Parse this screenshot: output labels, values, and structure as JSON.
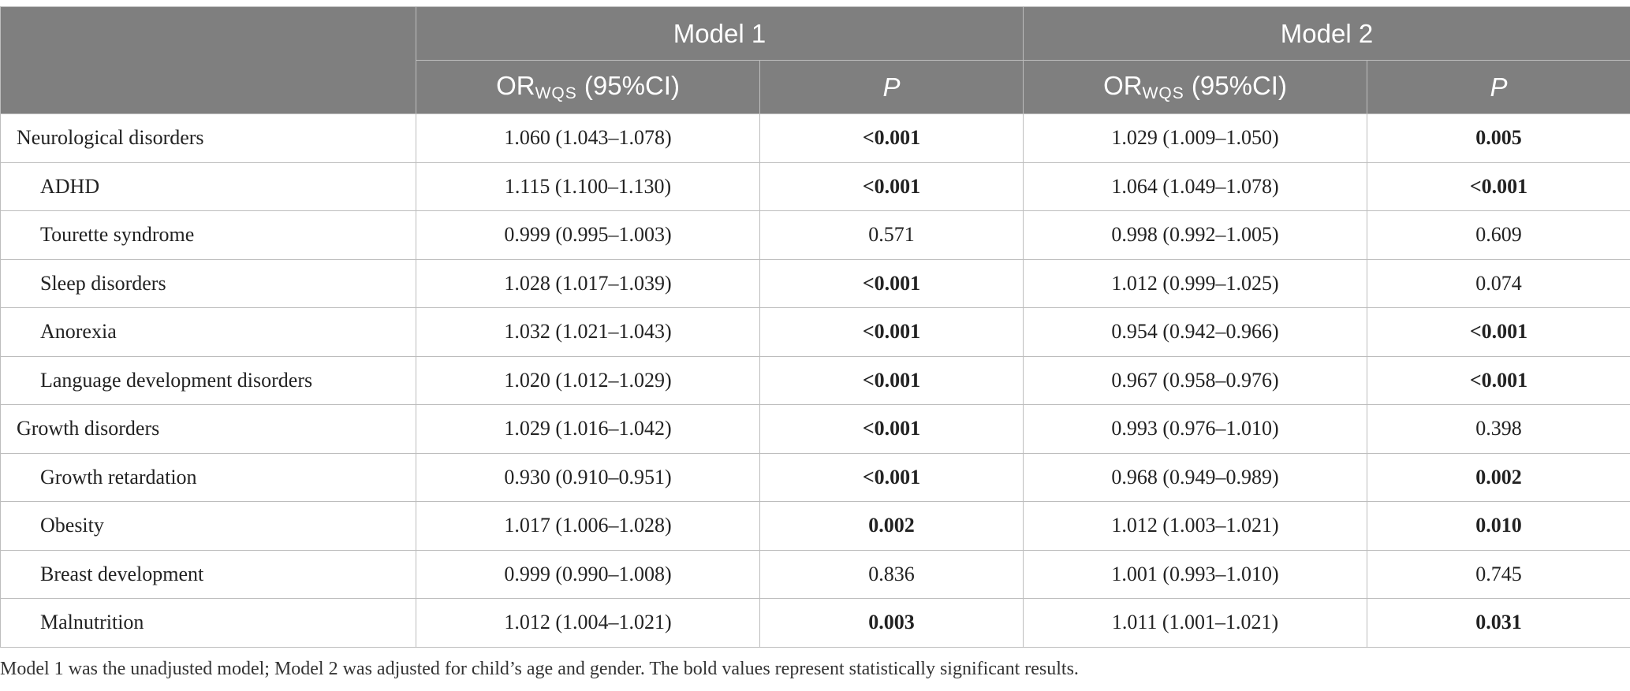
{
  "header": {
    "group_labels": [
      "Model 1",
      "Model 2"
    ],
    "or_label": "OR",
    "or_subscript": "WQS",
    "or_suffix": " (95%CI)",
    "p_label": "P"
  },
  "rows": [
    {
      "label": "Neurological disorders",
      "indent": false,
      "m1_or": "1.060 (1.043–1.078)",
      "m1_p": "<0.001",
      "m1_sig": true,
      "m2_or": "1.029 (1.009–1.050)",
      "m2_p": "0.005",
      "m2_sig": true
    },
    {
      "label": "ADHD",
      "indent": true,
      "m1_or": "1.115 (1.100–1.130)",
      "m1_p": "<0.001",
      "m1_sig": true,
      "m2_or": "1.064 (1.049–1.078)",
      "m2_p": "<0.001",
      "m2_sig": true
    },
    {
      "label": "Tourette syndrome",
      "indent": true,
      "m1_or": "0.999 (0.995–1.003)",
      "m1_p": "0.571",
      "m1_sig": false,
      "m2_or": "0.998 (0.992–1.005)",
      "m2_p": "0.609",
      "m2_sig": false
    },
    {
      "label": "Sleep disorders",
      "indent": true,
      "m1_or": "1.028 (1.017–1.039)",
      "m1_p": "<0.001",
      "m1_sig": true,
      "m2_or": "1.012 (0.999–1.025)",
      "m2_p": "0.074",
      "m2_sig": false
    },
    {
      "label": "Anorexia",
      "indent": true,
      "m1_or": "1.032 (1.021–1.043)",
      "m1_p": "<0.001",
      "m1_sig": true,
      "m2_or": "0.954 (0.942–0.966)",
      "m2_p": "<0.001",
      "m2_sig": true
    },
    {
      "label": "Language development disorders",
      "indent": true,
      "m1_or": "1.020 (1.012–1.029)",
      "m1_p": "<0.001",
      "m1_sig": true,
      "m2_or": "0.967 (0.958–0.976)",
      "m2_p": "<0.001",
      "m2_sig": true
    },
    {
      "label": "Growth disorders",
      "indent": false,
      "m1_or": "1.029 (1.016–1.042)",
      "m1_p": "<0.001",
      "m1_sig": true,
      "m2_or": "0.993 (0.976–1.010)",
      "m2_p": "0.398",
      "m2_sig": false
    },
    {
      "label": "Growth retardation",
      "indent": true,
      "m1_or": "0.930 (0.910–0.951)",
      "m1_p": "<0.001",
      "m1_sig": true,
      "m2_or": "0.968 (0.949–0.989)",
      "m2_p": "0.002",
      "m2_sig": true
    },
    {
      "label": "Obesity",
      "indent": true,
      "m1_or": "1.017 (1.006–1.028)",
      "m1_p": "0.002",
      "m1_sig": true,
      "m2_or": "1.012 (1.003–1.021)",
      "m2_p": "0.010",
      "m2_sig": true
    },
    {
      "label": "Breast development",
      "indent": true,
      "m1_or": "0.999 (0.990–1.008)",
      "m1_p": "0.836",
      "m1_sig": false,
      "m2_or": "1.001 (0.993–1.010)",
      "m2_p": "0.745",
      "m2_sig": false
    },
    {
      "label": "Malnutrition",
      "indent": true,
      "m1_or": "1.012 (1.004–1.021)",
      "m1_p": "0.003",
      "m1_sig": true,
      "m2_or": "1.011 (1.001–1.021)",
      "m2_p": "0.031",
      "m2_sig": true
    }
  ],
  "footnote": "Model 1 was the unadjusted model; Model 2 was adjusted for child’s age and gender. The bold values represent statistically significant results.",
  "colors": {
    "header_bg": "#7f7f7f",
    "header_text": "#ffffff",
    "grid": "#bdbdbd"
  }
}
